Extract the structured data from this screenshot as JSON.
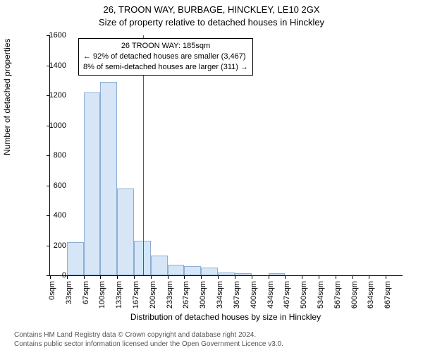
{
  "title_line1": "26, TROON WAY, BURBAGE, HINCKLEY, LE10 2GX",
  "title_line2": "Size of property relative to detached houses in Hinckley",
  "ylabel": "Number of detached properties",
  "xlabel": "Distribution of detached houses by size in Hinckley",
  "footer_line1": "Contains HM Land Registry data © Crown copyright and database right 2024.",
  "footer_line2": "Contains public sector information licensed under the Open Government Licence v3.0.",
  "annotation": {
    "line1": "26 TROON WAY: 185sqm",
    "line2": "← 92% of detached houses are smaller (3,467)",
    "line3": "8% of semi-detached houses are larger (311) →"
  },
  "chart": {
    "type": "histogram",
    "background_color": "#ffffff",
    "bar_fill": "#d6e6f7",
    "bar_border": "#8cadd4",
    "axis_color": "#000000",
    "ref_line_color": "#dc2323",
    "ref_value_x": 185,
    "x_min": 0,
    "x_max": 700,
    "y_min": 0,
    "y_max": 1600,
    "y_ticks": [
      0,
      200,
      400,
      600,
      800,
      1000,
      1200,
      1400,
      1600
    ],
    "x_tick_step": 33.333,
    "x_tick_labels": [
      "0sqm",
      "33sqm",
      "67sqm",
      "100sqm",
      "133sqm",
      "167sqm",
      "200sqm",
      "233sqm",
      "267sqm",
      "300sqm",
      "334sqm",
      "367sqm",
      "400sqm",
      "434sqm",
      "467sqm",
      "500sqm",
      "534sqm",
      "567sqm",
      "600sqm",
      "634sqm",
      "667sqm"
    ],
    "bin_width": 33.333,
    "bar_values": [
      0,
      220,
      1220,
      1290,
      580,
      230,
      130,
      70,
      60,
      50,
      18,
      15,
      0,
      15,
      0,
      0,
      0,
      0,
      0,
      0,
      0
    ],
    "label_fontsize": 12,
    "tick_fontsize": 11,
    "title_fontsize": 13
  }
}
